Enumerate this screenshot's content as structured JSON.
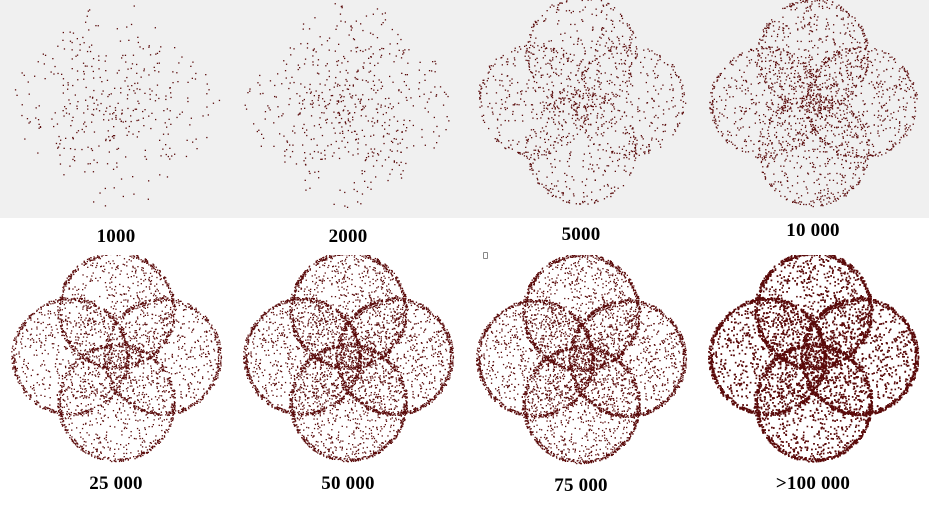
{
  "dot_color": "#5a0a0a",
  "panels": [
    {
      "label": "1000",
      "points": 1000
    },
    {
      "label": "2000",
      "points": 2000
    },
    {
      "label": "5000",
      "points": 5000
    },
    {
      "label": "10 000",
      "points": 10000
    },
    {
      "label": "25 000",
      "points": 25000
    },
    {
      "label": "50 000",
      "points": 50000
    },
    {
      "label": "75 000",
      "points": 75000
    },
    {
      "label": ">100 000",
      "points": 100000
    }
  ]
}
